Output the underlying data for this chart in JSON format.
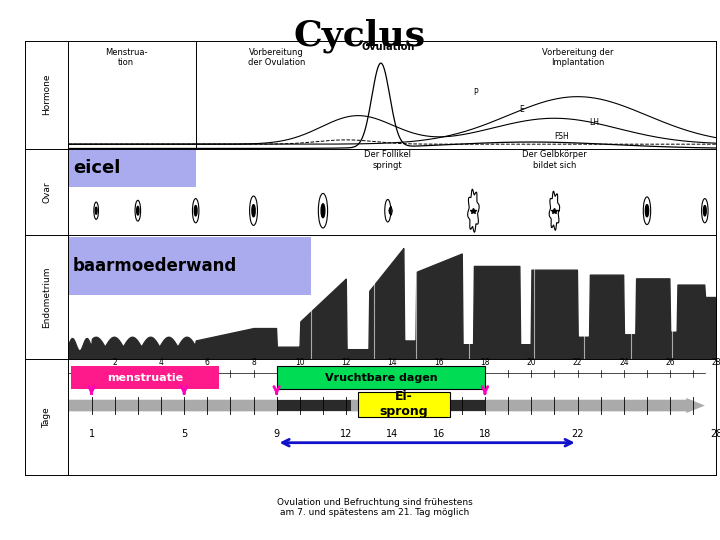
{
  "title": "Cyclus",
  "title_fontsize": 26,
  "title_fontweight": "bold",
  "bg_color": "#ffffff",
  "row_labels": [
    "Hormone",
    "Ovar",
    "Endometrium",
    "Tage"
  ],
  "colors": {
    "eicel_bg": "#aaaaee",
    "baarmoeder_bg": "#aaaaee",
    "menstruatie_bg": "#ff1a8c",
    "vruchtbare_bg": "#00dd55",
    "eisprong_bg": "#ffff00",
    "dark_segment": "#2a2a2a",
    "blue_arrow": "#1111cc",
    "magenta_arrow": "#ff00bb",
    "timeline_gray": "#aaaaaa",
    "border": "#000000",
    "white": "#ffffff",
    "endo_dark": "#2a2a2a"
  },
  "tage_labels": {
    "menstruatie": "menstruatie",
    "vruchtbare": "Vruchtbare dagen",
    "eisprong": "Ei-\nsprong"
  },
  "bottom_text": "Ovulation und Befruchtung sind frühestens\nam 7. und spätestens am 21. Tag möglich",
  "endometrium_label": "baarmoederwand",
  "ovar_eicel": "eicel",
  "ovar_follikel": "Der Follikel\nspringt",
  "ovar_gelb": "Der Gelb körper\nbildet sich",
  "hormone_menstrua": "Menstrua-\ntion",
  "hormone_vorb1": "Vorbereitung\nder Ovulation",
  "hormone_ovulation": "Ovulation",
  "hormone_vorb2": "Vorbereitung der\nImplantation"
}
